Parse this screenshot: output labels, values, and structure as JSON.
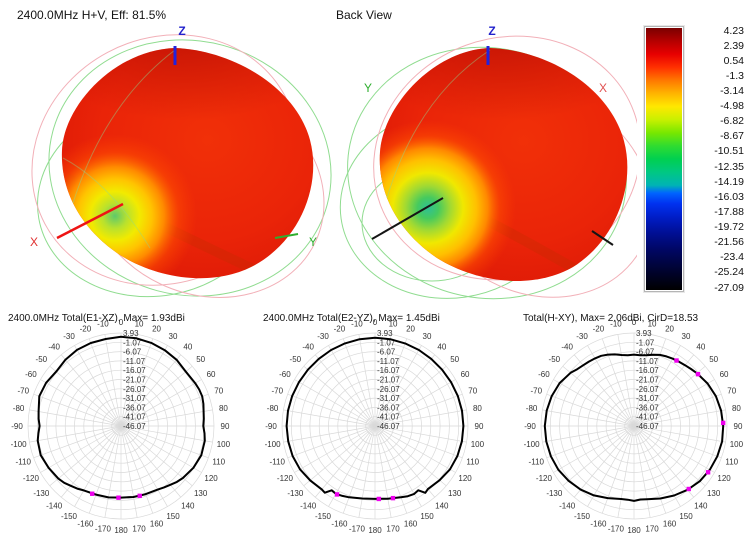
{
  "header": {
    "left_title": "2400.0MHz H+V, Eff: 81.5%",
    "right_title": "Back View"
  },
  "view3d": {
    "front": {
      "z_label": "Z",
      "x_label": "X",
      "y_label": "Y"
    },
    "back": {
      "z_label": "Z",
      "x_label": "X",
      "y_label": "Y"
    }
  },
  "colors": {
    "axis_z": "#2222cc",
    "axis_x": "#e03030",
    "axis_y": "#2fae2f",
    "pattern_curve": "#000000",
    "marker": "#ee00ee",
    "grid": "#d9d9d9",
    "blob_red": "#e82508",
    "wireframe_green": "#90dc90",
    "wireframe_pink": "#f2b0b8"
  },
  "colorbar": {
    "tick_labels": [
      "4.23",
      "2.39",
      "0.54",
      "-1.3",
      "-3.14",
      "-4.98",
      "-6.82",
      "-8.67",
      "-10.51",
      "-12.35",
      "-14.19",
      "-16.03",
      "-17.88",
      "-19.72",
      "-21.56",
      "-23.4",
      "-25.24",
      "-27.09"
    ],
    "gradient_stops": [
      [
        0.0,
        "#7a0000"
      ],
      [
        0.05,
        "#b40000"
      ],
      [
        0.1,
        "#e80000"
      ],
      [
        0.15,
        "#ff3000"
      ],
      [
        0.2,
        "#ff7800"
      ],
      [
        0.25,
        "#ffb400"
      ],
      [
        0.3,
        "#ffe800"
      ],
      [
        0.35,
        "#c8f000"
      ],
      [
        0.4,
        "#78e800"
      ],
      [
        0.45,
        "#30dc30"
      ],
      [
        0.5,
        "#00d050"
      ],
      [
        0.55,
        "#00c882"
      ],
      [
        0.6,
        "#00b4b4"
      ],
      [
        0.63,
        "#0064ff"
      ],
      [
        0.67,
        "#0032f0"
      ],
      [
        0.72,
        "#001ec8"
      ],
      [
        0.78,
        "#000f96"
      ],
      [
        0.84,
        "#000768"
      ],
      [
        0.9,
        "#000440"
      ],
      [
        0.95,
        "#000220"
      ],
      [
        1.0,
        "#000000"
      ]
    ]
  },
  "chart_data": [
    {
      "type": "polar",
      "title": "2400.0MHz Total(E1-XZ), Max= 1.93dBi",
      "max_dbi": 1.93,
      "angle_unit": "deg",
      "angle_tick_labels": [
        "-170",
        "-160",
        "-150",
        "-140",
        "-130",
        "-120",
        "-110",
        "-100",
        "-90",
        "-80",
        "-70",
        "-60",
        "-50",
        "-40",
        "-30",
        "-20",
        "-10",
        "0",
        "10",
        "20",
        "30",
        "40",
        "50",
        "60",
        "70",
        "80",
        "90",
        "100",
        "110",
        "120",
        "130",
        "140",
        "150",
        "160",
        "170",
        "180"
      ],
      "radial_tick_labels": [
        "3.93",
        "-1.07",
        "-6.07",
        "-11.07",
        "-16.07",
        "-21.07",
        "-26.07",
        "-31.07",
        "-36.07",
        "-41.07",
        "-46.07"
      ],
      "r_axis": {
        "outer_db": 3.93,
        "center_db": -46.07,
        "ring_step_db": 5
      },
      "series": {
        "name": "Total",
        "angles_deg": [
          -180,
          -170,
          -160,
          -150,
          -145,
          -140,
          -135,
          -130,
          -120,
          -110,
          -100,
          -95,
          -90,
          -85,
          -80,
          -70,
          -60,
          -50,
          -40,
          -30,
          -20,
          -10,
          0,
          10,
          20,
          30,
          40,
          50,
          60,
          65,
          70,
          75,
          80,
          85,
          90,
          95,
          100,
          110,
          120,
          130,
          135,
          140,
          145,
          150,
          160,
          170,
          180
        ],
        "values_db": [
          -7.6,
          -7.1,
          -6.8,
          -6.1,
          -5.0,
          -4.1,
          -2.9,
          -2.1,
          -1.1,
          -0.1,
          -0.6,
          -1.5,
          -2.3,
          -1.6,
          -1.1,
          0.7,
          0.4,
          -0.6,
          0.4,
          1.2,
          1.4,
          1.4,
          1.9,
          1.8,
          1.5,
          1.0,
          0.4,
          -0.6,
          0.0,
          0.3,
          0.4,
          -0.2,
          -1.0,
          -1.4,
          -1.8,
          -1.0,
          -0.3,
          -0.1,
          -1.1,
          -2.6,
          -3.6,
          -4.8,
          -5.8,
          -6.6,
          -7.1,
          -7.3,
          -7.6
        ]
      },
      "markers_deg_db": [
        [
          -157,
          -6.5
        ],
        [
          -178,
          -7.5
        ],
        [
          165,
          -7.2
        ]
      ]
    },
    {
      "type": "polar",
      "title": "2400.0MHz Total(E2-YZ), Max= 1.45dBi",
      "max_dbi": 1.45,
      "angle_unit": "deg",
      "angle_tick_labels": [
        "-170",
        "-160",
        "-150",
        "-140",
        "-130",
        "-120",
        "-110",
        "-100",
        "-90",
        "-80",
        "-70",
        "-60",
        "-50",
        "-40",
        "-30",
        "-20",
        "-10",
        "0",
        "10",
        "20",
        "30",
        "40",
        "50",
        "60",
        "70",
        "80",
        "90",
        "100",
        "110",
        "120",
        "130",
        "140",
        "150",
        "160",
        "170",
        "180"
      ],
      "radial_tick_labels": [
        "3.93",
        "-1.07",
        "-6.07",
        "-11.07",
        "-16.07",
        "-21.07",
        "-26.07",
        "-31.07",
        "-36.07",
        "-41.07",
        "-46.07"
      ],
      "r_axis": {
        "outer_db": 3.93,
        "center_db": -46.07,
        "ring_step_db": 5
      },
      "series": {
        "name": "Total",
        "angles_deg": [
          -180,
          -170,
          -160,
          -155,
          -150,
          -146,
          -143,
          -140,
          -130,
          -120,
          -110,
          -100,
          -90,
          -80,
          -70,
          -60,
          -50,
          -40,
          -30,
          -20,
          -10,
          0,
          10,
          20,
          30,
          40,
          50,
          60,
          70,
          80,
          90,
          100,
          110,
          120,
          130,
          140,
          143,
          146,
          150,
          155,
          160,
          170,
          180
        ],
        "values_db": [
          -6.9,
          -6.5,
          -5.3,
          -4.6,
          -4.0,
          -4.4,
          -1.2,
          -1.6,
          -0.6,
          0.5,
          1.1,
          1.3,
          1.45,
          1.4,
          1.3,
          1.1,
          1.0,
          1.0,
          1.1,
          1.2,
          1.3,
          1.4,
          1.3,
          1.2,
          1.1,
          1.0,
          1.0,
          1.1,
          1.3,
          1.4,
          1.45,
          1.35,
          1.1,
          0.5,
          -0.7,
          -1.8,
          -1.1,
          -4.4,
          -3.9,
          -4.4,
          -5.3,
          -6.4,
          -6.9
        ]
      },
      "markers_deg_db": [
        [
          -151,
          -4.0
        ],
        [
          166,
          -6.1
        ],
        [
          177,
          -6.8
        ]
      ]
    },
    {
      "type": "polar",
      "title": "Total(H-XY), Max= 2.06dBi, CirD=18.53",
      "max_dbi": 2.06,
      "cir_d": 18.53,
      "angle_unit": "deg",
      "angle_tick_labels": [
        "-170",
        "-160",
        "-150",
        "-140",
        "-130",
        "-120",
        "-110",
        "-100",
        "-90",
        "-80",
        "-70",
        "-60",
        "-50",
        "-40",
        "-30",
        "-20",
        "-10",
        "0",
        "10",
        "20",
        "30",
        "40",
        "50",
        "60",
        "70",
        "80",
        "90",
        "100",
        "110",
        "120",
        "130",
        "140",
        "150",
        "160",
        "170",
        "180"
      ],
      "radial_tick_labels": [
        "3.93",
        "-1.07",
        "-6.07",
        "-11.07",
        "-16.07",
        "-21.07",
        "-26.07",
        "-31.07",
        "-36.07",
        "-41.07",
        "-46.07"
      ],
      "r_axis": {
        "outer_db": 3.93,
        "center_db": -46.07,
        "ring_step_db": 5
      },
      "series": {
        "name": "Total",
        "angles_deg": [
          -180,
          -175,
          -170,
          -160,
          -150,
          -140,
          -130,
          -120,
          -110,
          -100,
          -90,
          -80,
          -70,
          -60,
          -50,
          -45,
          -40,
          -35,
          -30,
          -25,
          -20,
          -15,
          -10,
          -5,
          0,
          5,
          10,
          15,
          20,
          25,
          30,
          35,
          40,
          45,
          50,
          60,
          70,
          80,
          90,
          100,
          110,
          120,
          130,
          140,
          150,
          160,
          170,
          175,
          180
        ],
        "values_db": [
          -5.8,
          -6.3,
          -6.2,
          -4.8,
          -3.0,
          -1.4,
          -0.2,
          0.9,
          1.5,
          1.8,
          1.9,
          1.6,
          1.0,
          0.1,
          -1.6,
          -2.9,
          -3.5,
          -3.8,
          -4.1,
          -4.4,
          -5.2,
          -6.2,
          -7.3,
          -7.9,
          -7.7,
          -7.9,
          -7.5,
          -6.4,
          -5.4,
          -4.8,
          -4.3,
          -3.9,
          -3.4,
          -2.7,
          -1.9,
          -0.4,
          0.8,
          1.5,
          1.9,
          2.0,
          1.6,
          1.0,
          0.1,
          -1.3,
          -2.9,
          -4.6,
          -6.1,
          -6.4,
          -5.8
        ]
      },
      "markers_deg_db": [
        [
          33,
          -4.1
        ],
        [
          51,
          -1.8
        ],
        [
          88,
          1.9
        ],
        [
          122,
          0.9
        ],
        [
          139,
          -1.2
        ]
      ]
    }
  ]
}
